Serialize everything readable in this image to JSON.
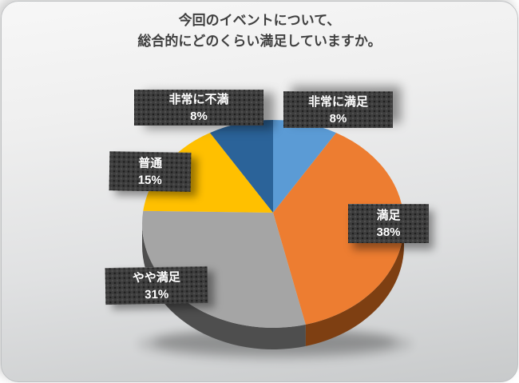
{
  "card": {
    "background_top": "#f7f7f7",
    "background_bottom": "#c8cacb",
    "border_color": "#bfc1c3"
  },
  "title": {
    "line1": "今回のイベントについて、",
    "line2": "総合的にどのくらい満足していますか。"
  },
  "chart_data": {
    "type": "pie",
    "projection": "3d",
    "title": "今回のイベントについて、総合的にどのくらい満足していますか。",
    "start_angle_deg": 0,
    "direction": "clockwise",
    "unit": "%",
    "categories": [
      "非常に満足",
      "満足",
      "やや満足",
      "普通",
      "非常に不満"
    ],
    "values": [
      8,
      38,
      31,
      15,
      8
    ],
    "slices": [
      {
        "label": "非常に満足",
        "pct": 8,
        "pct_label": "8%",
        "color": "#5B9BD5",
        "side_color": "#31608C"
      },
      {
        "label": "満足",
        "pct": 38,
        "pct_label": "38%",
        "color": "#ED7D31",
        "side_color": "#7E3F12"
      },
      {
        "label": "やや満足",
        "pct": 31,
        "pct_label": "31%",
        "color": "#A5A5A5",
        "side_color": "#4E4E4E"
      },
      {
        "label": "普通",
        "pct": 15,
        "pct_label": "15%",
        "color": "#FFC000",
        "side_color": "#8F6C00"
      },
      {
        "label": "非常に不満",
        "pct": 8,
        "pct_label": "8%",
        "color": "#2B6399",
        "side_color": "#16324D"
      }
    ],
    "legend": "none",
    "data_label_style": {
      "background": "#3d3d3d",
      "text_color": "#ffffff",
      "pattern": "dotted-grid"
    }
  }
}
